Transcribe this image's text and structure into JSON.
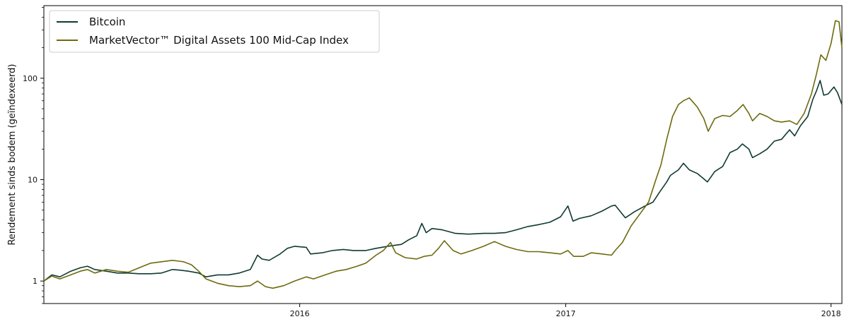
{
  "chart_data": {
    "type": "line",
    "ylabel": "Rendement sinds bodem (geïndexeerd)",
    "xlabel": "",
    "y_scale": "log",
    "ylim": [
      0.6,
      520
    ],
    "xlim": [
      "2015-01-14",
      "2018-01-16"
    ],
    "y_ticks": [
      {
        "value": 1,
        "label": "1"
      },
      {
        "value": 10,
        "label": "10"
      },
      {
        "value": 100,
        "label": "100"
      }
    ],
    "x_ticks": [
      {
        "date": "2016-01-01",
        "label": "2016"
      },
      {
        "date": "2017-01-01",
        "label": "2017"
      },
      {
        "date": "2018-01-01",
        "label": "2018"
      }
    ],
    "legend_position": "top-left",
    "grid": false,
    "series": [
      {
        "name": "Bitcoin",
        "color": "#0f3a32",
        "points": [
          [
            "2015-01-14",
            1.0
          ],
          [
            "2015-01-25",
            1.15
          ],
          [
            "2015-02-05",
            1.1
          ],
          [
            "2015-02-20",
            1.25
          ],
          [
            "2015-03-05",
            1.35
          ],
          [
            "2015-03-15",
            1.4
          ],
          [
            "2015-03-25",
            1.3
          ],
          [
            "2015-04-10",
            1.25
          ],
          [
            "2015-04-25",
            1.2
          ],
          [
            "2015-05-10",
            1.2
          ],
          [
            "2015-05-25",
            1.18
          ],
          [
            "2015-06-10",
            1.18
          ],
          [
            "2015-06-25",
            1.2
          ],
          [
            "2015-07-10",
            1.3
          ],
          [
            "2015-07-20",
            1.28
          ],
          [
            "2015-08-01",
            1.25
          ],
          [
            "2015-08-15",
            1.2
          ],
          [
            "2015-08-25",
            1.1
          ],
          [
            "2015-09-10",
            1.15
          ],
          [
            "2015-09-25",
            1.15
          ],
          [
            "2015-10-10",
            1.2
          ],
          [
            "2015-10-25",
            1.3
          ],
          [
            "2015-11-04",
            1.8
          ],
          [
            "2015-11-10",
            1.65
          ],
          [
            "2015-11-20",
            1.6
          ],
          [
            "2015-12-05",
            1.85
          ],
          [
            "2015-12-15",
            2.1
          ],
          [
            "2015-12-25",
            2.2
          ],
          [
            "2016-01-10",
            2.15
          ],
          [
            "2016-01-16",
            1.85
          ],
          [
            "2016-02-01",
            1.9
          ],
          [
            "2016-02-15",
            2.0
          ],
          [
            "2016-03-01",
            2.05
          ],
          [
            "2016-03-15",
            2.0
          ],
          [
            "2016-04-01",
            2.0
          ],
          [
            "2016-04-15",
            2.1
          ],
          [
            "2016-05-01",
            2.2
          ],
          [
            "2016-05-20",
            2.3
          ],
          [
            "2016-05-30",
            2.55
          ],
          [
            "2016-06-10",
            2.8
          ],
          [
            "2016-06-17",
            3.7
          ],
          [
            "2016-06-23",
            3.0
          ],
          [
            "2016-07-01",
            3.3
          ],
          [
            "2016-07-15",
            3.2
          ],
          [
            "2016-08-02",
            2.95
          ],
          [
            "2016-08-20",
            2.9
          ],
          [
            "2016-09-10",
            2.95
          ],
          [
            "2016-09-25",
            2.95
          ],
          [
            "2016-10-10",
            3.0
          ],
          [
            "2016-10-25",
            3.2
          ],
          [
            "2016-11-10",
            3.45
          ],
          [
            "2016-11-25",
            3.6
          ],
          [
            "2016-12-10",
            3.8
          ],
          [
            "2016-12-25",
            4.3
          ],
          [
            "2017-01-04",
            5.5
          ],
          [
            "2017-01-11",
            3.9
          ],
          [
            "2017-01-20",
            4.15
          ],
          [
            "2017-02-05",
            4.4
          ],
          [
            "2017-02-20",
            4.9
          ],
          [
            "2017-03-05",
            5.5
          ],
          [
            "2017-03-10",
            5.6
          ],
          [
            "2017-03-24",
            4.2
          ],
          [
            "2017-04-05",
            4.8
          ],
          [
            "2017-04-20",
            5.5
          ],
          [
            "2017-05-01",
            6.0
          ],
          [
            "2017-05-10",
            7.5
          ],
          [
            "2017-05-20",
            9.5
          ],
          [
            "2017-05-25",
            11.0
          ],
          [
            "2017-06-05",
            12.5
          ],
          [
            "2017-06-12",
            14.5
          ],
          [
            "2017-06-20",
            12.5
          ],
          [
            "2017-07-01",
            11.5
          ],
          [
            "2017-07-15",
            9.5
          ],
          [
            "2017-07-25",
            12.0
          ],
          [
            "2017-08-05",
            13.5
          ],
          [
            "2017-08-15",
            18.5
          ],
          [
            "2017-08-25",
            20.0
          ],
          [
            "2017-09-01",
            22.5
          ],
          [
            "2017-09-10",
            20.0
          ],
          [
            "2017-09-15",
            16.5
          ],
          [
            "2017-09-25",
            18.0
          ],
          [
            "2017-10-05",
            20.0
          ],
          [
            "2017-10-15",
            24.0
          ],
          [
            "2017-10-25",
            25.0
          ],
          [
            "2017-11-05",
            31.0
          ],
          [
            "2017-11-12",
            27.0
          ],
          [
            "2017-11-20",
            34.0
          ],
          [
            "2017-11-30",
            42.0
          ],
          [
            "2017-12-07",
            62.0
          ],
          [
            "2017-12-12",
            75.0
          ],
          [
            "2017-12-17",
            95.0
          ],
          [
            "2017-12-22",
            68.0
          ],
          [
            "2017-12-28",
            70.0
          ],
          [
            "2018-01-05",
            82.0
          ],
          [
            "2018-01-10",
            72.0
          ],
          [
            "2018-01-16",
            55.0
          ]
        ]
      },
      {
        "name": "MarketVector™ Digital Assets 100 Mid-Cap Index",
        "color": "#6e6a0e",
        "points": [
          [
            "2015-01-14",
            1.0
          ],
          [
            "2015-01-25",
            1.12
          ],
          [
            "2015-02-05",
            1.05
          ],
          [
            "2015-02-20",
            1.15
          ],
          [
            "2015-03-05",
            1.25
          ],
          [
            "2015-03-15",
            1.3
          ],
          [
            "2015-03-25",
            1.2
          ],
          [
            "2015-04-10",
            1.3
          ],
          [
            "2015-04-25",
            1.25
          ],
          [
            "2015-05-10",
            1.22
          ],
          [
            "2015-05-25",
            1.35
          ],
          [
            "2015-06-10",
            1.5
          ],
          [
            "2015-06-25",
            1.55
          ],
          [
            "2015-07-10",
            1.6
          ],
          [
            "2015-07-25",
            1.55
          ],
          [
            "2015-08-05",
            1.45
          ],
          [
            "2015-08-15",
            1.25
          ],
          [
            "2015-08-25",
            1.05
          ],
          [
            "2015-09-10",
            0.95
          ],
          [
            "2015-09-25",
            0.9
          ],
          [
            "2015-10-10",
            0.88
          ],
          [
            "2015-10-25",
            0.9
          ],
          [
            "2015-11-04",
            1.0
          ],
          [
            "2015-11-15",
            0.88
          ],
          [
            "2015-11-25",
            0.85
          ],
          [
            "2015-12-10",
            0.9
          ],
          [
            "2015-12-25",
            1.0
          ],
          [
            "2016-01-10",
            1.1
          ],
          [
            "2016-01-20",
            1.05
          ],
          [
            "2016-02-05",
            1.15
          ],
          [
            "2016-02-20",
            1.25
          ],
          [
            "2016-03-05",
            1.3
          ],
          [
            "2016-03-20",
            1.4
          ],
          [
            "2016-04-01",
            1.5
          ],
          [
            "2016-04-15",
            1.8
          ],
          [
            "2016-04-25",
            2.0
          ],
          [
            "2016-05-05",
            2.4
          ],
          [
            "2016-05-12",
            1.9
          ],
          [
            "2016-05-25",
            1.7
          ],
          [
            "2016-06-10",
            1.65
          ],
          [
            "2016-06-20",
            1.75
          ],
          [
            "2016-07-01",
            1.8
          ],
          [
            "2016-07-10",
            2.1
          ],
          [
            "2016-07-18",
            2.5
          ],
          [
            "2016-07-30",
            2.0
          ],
          [
            "2016-08-10",
            1.85
          ],
          [
            "2016-08-25",
            2.0
          ],
          [
            "2016-09-10",
            2.2
          ],
          [
            "2016-09-25",
            2.45
          ],
          [
            "2016-10-10",
            2.2
          ],
          [
            "2016-10-25",
            2.05
          ],
          [
            "2016-11-10",
            1.95
          ],
          [
            "2016-11-25",
            1.95
          ],
          [
            "2016-12-10",
            1.9
          ],
          [
            "2016-12-25",
            1.85
          ],
          [
            "2017-01-04",
            2.0
          ],
          [
            "2017-01-12",
            1.75
          ],
          [
            "2017-01-25",
            1.75
          ],
          [
            "2017-02-05",
            1.9
          ],
          [
            "2017-02-20",
            1.85
          ],
          [
            "2017-03-05",
            1.8
          ],
          [
            "2017-03-10",
            2.0
          ],
          [
            "2017-03-20",
            2.4
          ],
          [
            "2017-04-01",
            3.5
          ],
          [
            "2017-04-15",
            4.8
          ],
          [
            "2017-04-25",
            6.0
          ],
          [
            "2017-05-05",
            10.0
          ],
          [
            "2017-05-12",
            14.0
          ],
          [
            "2017-05-20",
            25.0
          ],
          [
            "2017-05-28",
            42.0
          ],
          [
            "2017-06-05",
            55.0
          ],
          [
            "2017-06-12",
            60.0
          ],
          [
            "2017-06-20",
            64.0
          ],
          [
            "2017-07-01",
            52.0
          ],
          [
            "2017-07-10",
            40.0
          ],
          [
            "2017-07-16",
            30.0
          ],
          [
            "2017-07-25",
            40.0
          ],
          [
            "2017-08-05",
            43.0
          ],
          [
            "2017-08-15",
            42.0
          ],
          [
            "2017-08-25",
            48.0
          ],
          [
            "2017-09-02",
            55.0
          ],
          [
            "2017-09-10",
            45.0
          ],
          [
            "2017-09-15",
            38.0
          ],
          [
            "2017-09-25",
            45.0
          ],
          [
            "2017-10-05",
            42.0
          ],
          [
            "2017-10-15",
            38.0
          ],
          [
            "2017-10-25",
            37.0
          ],
          [
            "2017-11-05",
            38.0
          ],
          [
            "2017-11-15",
            35.0
          ],
          [
            "2017-11-25",
            45.0
          ],
          [
            "2017-12-05",
            70.0
          ],
          [
            "2017-12-12",
            110.0
          ],
          [
            "2017-12-18",
            170.0
          ],
          [
            "2017-12-25",
            150.0
          ],
          [
            "2018-01-01",
            220.0
          ],
          [
            "2018-01-07",
            370.0
          ],
          [
            "2018-01-12",
            360.0
          ],
          [
            "2018-01-16",
            200.0
          ]
        ]
      }
    ]
  }
}
